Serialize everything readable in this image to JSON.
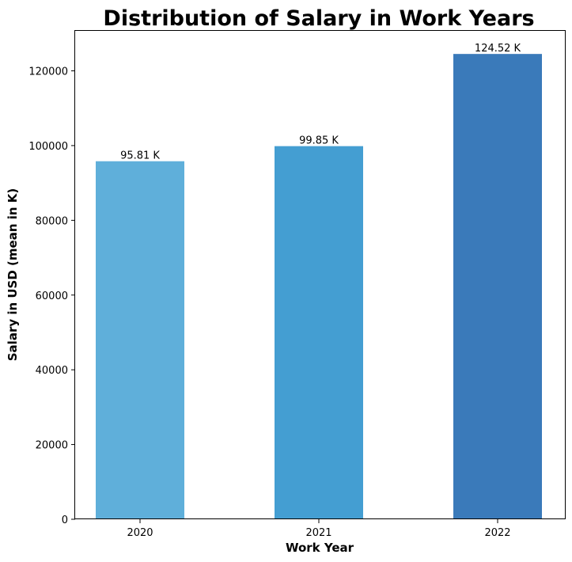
{
  "chart_data": {
    "type": "bar",
    "title": "Distribution of Salary in Work Years",
    "xlabel": "Work Year",
    "ylabel": "Salary in USD (mean in K)",
    "categories": [
      "2020",
      "2021",
      "2022"
    ],
    "values": [
      95813,
      99853,
      124522
    ],
    "data_labels": [
      "95.81 K",
      "99.85 K",
      "124.52 K"
    ],
    "colors": [
      "#5fafda",
      "#449ed2",
      "#3a7aba"
    ],
    "ylim": [
      0,
      130700
    ],
    "yticks": [
      0,
      20000,
      40000,
      60000,
      80000,
      100000,
      120000
    ],
    "grid": false,
    "legend": false
  }
}
